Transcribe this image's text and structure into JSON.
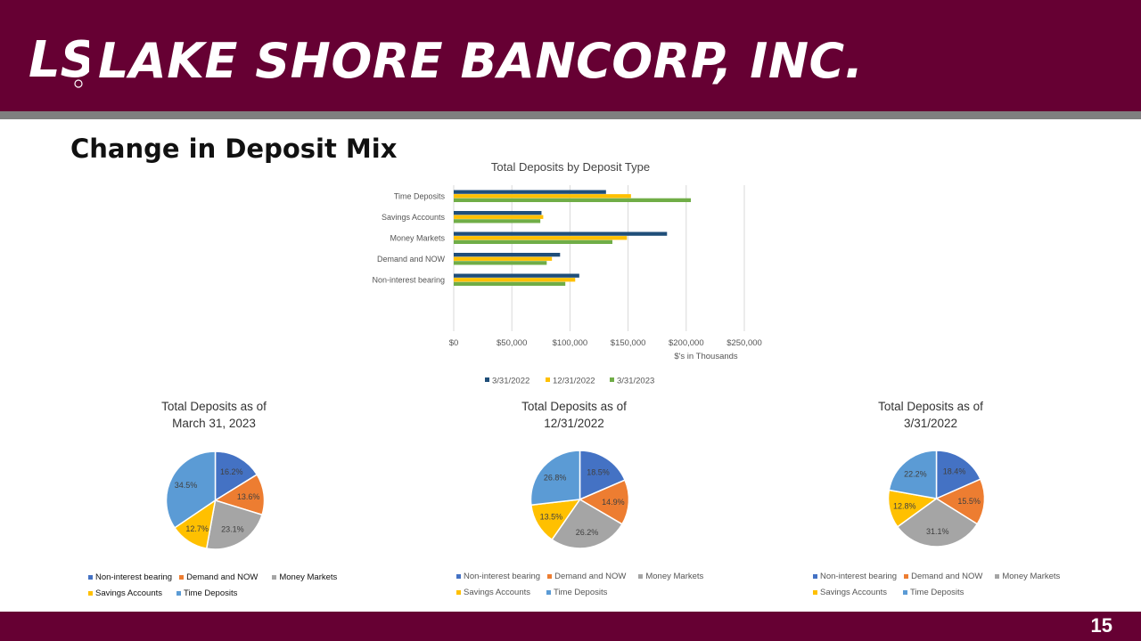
{
  "header": {
    "logo_text": "LS",
    "company": "LAKE SHORE BANCORP, INC."
  },
  "slide_title": "Change in Deposit Mix",
  "page_number": "15",
  "colors": {
    "brand": "#660033",
    "strip": "#7f7f7f",
    "series": [
      "#1f4e79",
      "#ffc000",
      "#70ad47"
    ],
    "pie": [
      "#4472c4",
      "#ed7d31",
      "#a5a5a5",
      "#ffc000",
      "#5b9bd5"
    ]
  },
  "chart_data": [
    {
      "type": "bar",
      "orientation": "horizontal",
      "title": "Total Deposits by Deposit Type",
      "xlabel": "$'s in Thousands",
      "xlim": [
        0,
        250000
      ],
      "ticks": [
        "$0",
        "$50,000",
        "$100,000",
        "$150,000",
        "$200,000",
        "$250,000"
      ],
      "categories": [
        "Time Deposits",
        "Savings Accounts",
        "Money Markets",
        "Demand and NOW",
        "Non-interest bearing"
      ],
      "series": [
        {
          "name": "3/31/2022",
          "values": [
            131000,
            75500,
            183500,
            91500,
            108000
          ]
        },
        {
          "name": "12/31/2022",
          "values": [
            152500,
            77000,
            149000,
            84500,
            104500
          ]
        },
        {
          "name": "3/31/2023",
          "values": [
            204000,
            74500,
            136500,
            80000,
            96000
          ]
        }
      ],
      "legend_position": "bottom"
    },
    {
      "type": "pie",
      "title": [
        "Total Deposits as of",
        "March 31, 2023"
      ],
      "labels": [
        "Non-interest bearing",
        "Demand and NOW",
        "Money Markets",
        "Savings Accounts",
        "Time Deposits"
      ],
      "values": [
        16.2,
        13.6,
        23.1,
        12.7,
        34.5
      ],
      "value_labels": [
        "16.2%",
        "13.6%",
        "23.1%",
        "12.7%",
        "34.5%"
      ]
    },
    {
      "type": "pie",
      "title": [
        "Total Deposits as of",
        "12/31/2022"
      ],
      "labels": [
        "Non-interest bearing",
        "Demand and NOW",
        "Money Markets",
        "Savings Accounts",
        "Time Deposits"
      ],
      "values": [
        18.5,
        14.9,
        26.2,
        13.5,
        26.8
      ],
      "value_labels": [
        "18.5%",
        "14.9%",
        "26.2%",
        "13.5%",
        "26.8%"
      ]
    },
    {
      "type": "pie",
      "title": [
        "Total Deposits as of",
        "3/31/2022"
      ],
      "labels": [
        "Non-interest bearing",
        "Demand and NOW",
        "Money Markets",
        "Savings Accounts",
        "Time Deposits"
      ],
      "values": [
        18.4,
        15.5,
        31.1,
        12.8,
        22.2
      ],
      "value_labels": [
        "18.4%",
        "15.5%",
        "31.1%",
        "12.8%",
        "22.2%"
      ]
    }
  ]
}
